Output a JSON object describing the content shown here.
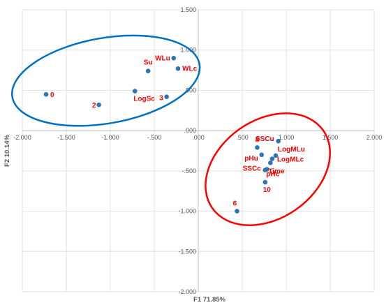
{
  "chart_data": {
    "type": "scatter",
    "xlabel": "F1 71.85%",
    "ylabel": "F2 10.14%",
    "xlim": [
      -2.0,
      2.0
    ],
    "ylim": [
      -2.0,
      1.5
    ],
    "x_ticks": [
      -2.0,
      -1.5,
      -1.0,
      -0.5,
      0.0,
      0.5,
      1.0,
      1.5,
      2.0
    ],
    "y_ticks": [
      -2.0,
      -1.5,
      -1.0,
      -0.5,
      0.0,
      0.5,
      1.0,
      1.5
    ],
    "x_tick_labels": [
      "-2.000",
      "-1.500",
      "-1.000",
      "-.500",
      ".000",
      ".500",
      "1.000",
      "1.500",
      "2.000"
    ],
    "y_tick_labels": [
      "-2.000",
      "-1.500",
      "-1.000",
      "-.500",
      ".000",
      ".500",
      "1.000",
      "1.500"
    ],
    "grid": true,
    "marker_color": "#2e75b6",
    "points": [
      {
        "label": "0",
        "x": -1.73,
        "y": 0.45,
        "color": "#ff0000"
      },
      {
        "label": "2",
        "x": -1.13,
        "y": 0.32,
        "color": "#ff0000"
      },
      {
        "label": "Su",
        "x": -0.57,
        "y": 0.74,
        "color": "#ff0000"
      },
      {
        "label": "WLu",
        "x": -0.28,
        "y": 0.9,
        "color": "#ff0000"
      },
      {
        "label": "WLc",
        "x": -0.23,
        "y": 0.77,
        "color": "#ff0000"
      },
      {
        "label": "LogSc",
        "x": -0.72,
        "y": 0.49,
        "color": "#ff0000"
      },
      {
        "label": "3",
        "x": -0.36,
        "y": 0.42,
        "color": "#ff0000"
      },
      {
        "label": "8",
        "x": 0.67,
        "y": -0.21,
        "color": "#ff0000"
      },
      {
        "label": "SSCu",
        "x": 0.91,
        "y": -0.13,
        "color": "#ff0000"
      },
      {
        "label": "pHu",
        "x": 0.72,
        "y": -0.3,
        "color": "#ff0000"
      },
      {
        "label": "LogMLu",
        "x": 0.88,
        "y": -0.31,
        "color": "#ff0000"
      },
      {
        "label": "LogMLc",
        "x": 0.84,
        "y": -0.35,
        "color": "#ff0000"
      },
      {
        "label": "Time",
        "x": 0.82,
        "y": -0.4,
        "color": "#ff0000"
      },
      {
        "label": "SSCc",
        "x": 0.76,
        "y": -0.49,
        "color": "#ff0000"
      },
      {
        "label": "pHc",
        "x": 0.78,
        "y": -0.48,
        "color": "#ff0000"
      },
      {
        "label": "10",
        "x": 0.76,
        "y": -0.64,
        "color": "#ff0000"
      },
      {
        "label": "6",
        "x": 0.44,
        "y": -1.0,
        "color": "#ff0000"
      }
    ],
    "groups": [
      {
        "color": "#0070c0",
        "center": [
          -1.05,
          0.62
        ],
        "radius_x": 1.08,
        "radius_y": 0.53,
        "rotation_deg": -10
      },
      {
        "color": "#ff0000",
        "center": [
          0.79,
          -0.48
        ],
        "radius_x": 0.77,
        "radius_y": 0.61,
        "rotation_deg": -35
      }
    ]
  }
}
